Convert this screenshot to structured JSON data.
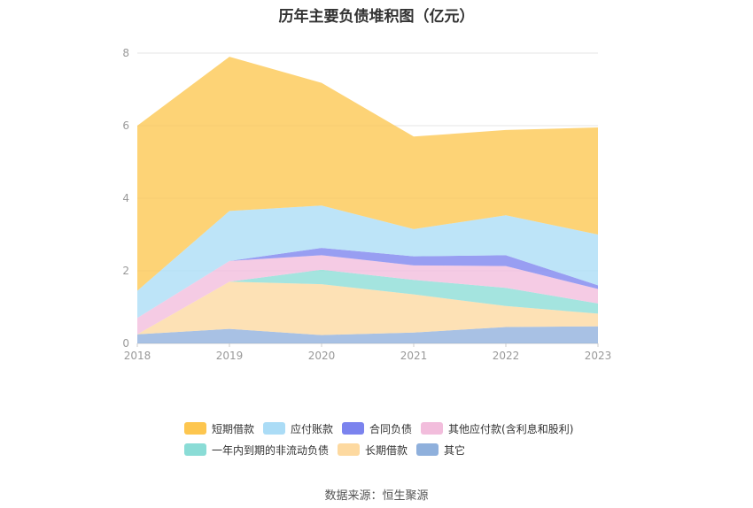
{
  "title": "历年主要负债堆积图（亿元）",
  "source": "数据来源：恒生聚源",
  "chart_data": {
    "type": "area",
    "stacked": true,
    "categories": [
      "2018",
      "2019",
      "2020",
      "2021",
      "2022",
      "2023"
    ],
    "ylim": [
      0,
      8
    ],
    "yticks": [
      0,
      2,
      4,
      6,
      8
    ],
    "grid": true,
    "legend_position": "bottom",
    "series": [
      {
        "name": "其它",
        "color": "#8fb0dc",
        "values": [
          0.25,
          0.4,
          0.23,
          0.3,
          0.45,
          0.47
        ]
      },
      {
        "name": "长期借款",
        "color": "#fdd9a0",
        "values": [
          0.0,
          1.3,
          1.4,
          1.05,
          0.58,
          0.35
        ]
      },
      {
        "name": "一年内到期的非流动负债",
        "color": "#8adcd6",
        "values": [
          0.0,
          0.0,
          0.4,
          0.4,
          0.5,
          0.28
        ]
      },
      {
        "name": "其他应付款(含利息和股利)",
        "color": "#f2bddc",
        "values": [
          0.45,
          0.57,
          0.4,
          0.4,
          0.6,
          0.4
        ]
      },
      {
        "name": "合同负债",
        "color": "#7b83ee",
        "values": [
          0.0,
          0.0,
          0.2,
          0.25,
          0.3,
          0.1
        ]
      },
      {
        "name": "应付账款",
        "color": "#abdcf6",
        "values": [
          0.75,
          1.38,
          1.17,
          0.75,
          1.1,
          1.4
        ]
      },
      {
        "name": "短期借款",
        "color": "#fdc64f",
        "values": [
          4.55,
          4.25,
          3.38,
          2.55,
          2.35,
          2.95
        ]
      }
    ]
  },
  "legend_rows": [
    [
      {
        "label": "短期借款",
        "color": "#fdc64f"
      },
      {
        "label": "应付账款",
        "color": "#abdcf6"
      },
      {
        "label": "合同负债",
        "color": "#7b83ee"
      },
      {
        "label": "其他应付款(含利息和股利)",
        "color": "#f2bddc"
      }
    ],
    [
      {
        "label": "一年内到期的非流动负债",
        "color": "#8adcd6"
      },
      {
        "label": "长期借款",
        "color": "#fdd9a0"
      },
      {
        "label": "其它",
        "color": "#8fb0dc"
      }
    ]
  ]
}
